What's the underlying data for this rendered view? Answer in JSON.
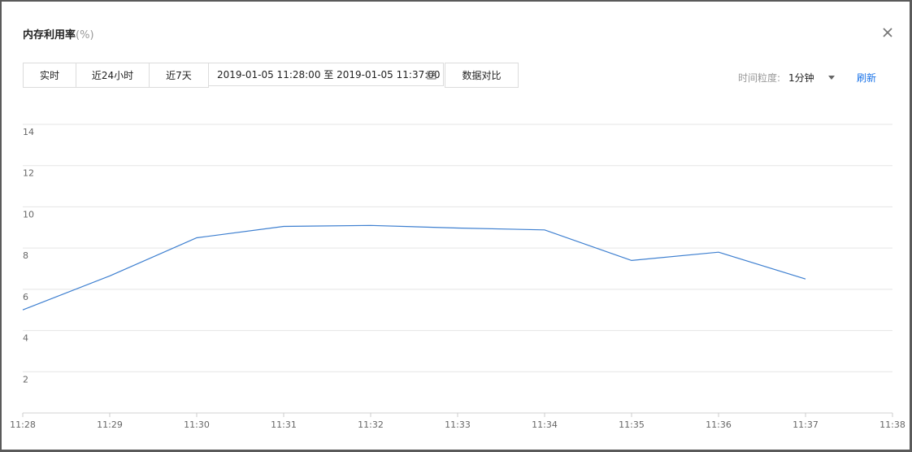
{
  "dialog": {
    "title": "内存利用率",
    "title_unit": "(%)",
    "close_icon": "close-icon"
  },
  "toolbar": {
    "realtime": "实时",
    "last_24h": "近24小时",
    "last_7d": "近7天",
    "range_text": "2019-01-05 11:28:00 至 2019-01-05 11:37:00",
    "calendar_icon": "calendar-icon",
    "compare": "数据对比",
    "granularity_label": "时间粒度:",
    "granularity_value": "1分钟",
    "refresh": "刷新"
  },
  "colors": {
    "line": "#3d7fd0",
    "link": "#1a73e8",
    "grid": "#e5e5e5"
  },
  "chart_data": {
    "type": "line",
    "x": [
      "11:28",
      "11:29",
      "11:30",
      "11:31",
      "11:32",
      "11:33",
      "11:34",
      "11:35",
      "11:36",
      "11:37",
      "11:38"
    ],
    "y": [
      5.0,
      6.65,
      8.5,
      9.05,
      9.1,
      8.97,
      8.88,
      7.4,
      7.8,
      6.5,
      null
    ],
    "ylim": [
      0,
      14
    ],
    "yticks": [
      2,
      4,
      6,
      8,
      10,
      12,
      14
    ],
    "grid": true,
    "xlabel": "",
    "ylabel": ""
  }
}
